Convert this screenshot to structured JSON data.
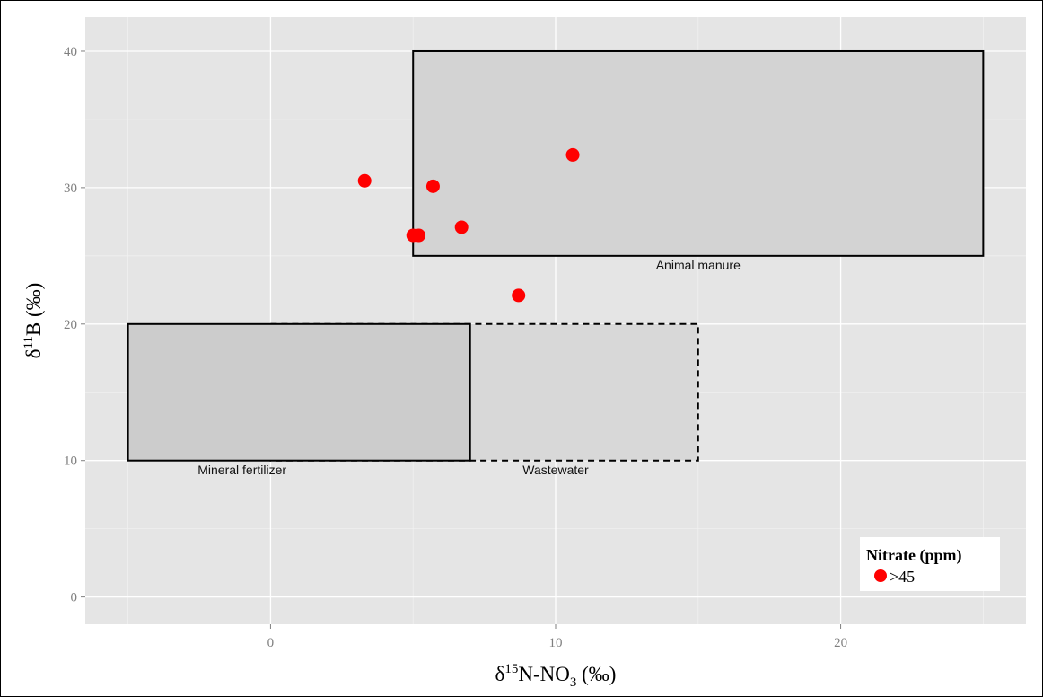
{
  "chart_data": {
    "type": "scatter",
    "xlabel": {
      "prefix": "δ",
      "sup": "15",
      "main": "N-NO",
      "sub": "3",
      "suffix": " (‰)"
    },
    "ylabel": {
      "prefix": "δ",
      "sup": "11",
      "main": "B (‰)"
    },
    "xlim": [
      -6.5,
      26.5
    ],
    "ylim": [
      -2,
      42.5
    ],
    "x_ticks": [
      0,
      10,
      20
    ],
    "y_ticks": [
      0,
      10,
      20,
      30,
      40
    ],
    "grid": true,
    "regions": [
      {
        "name": "Animal manure",
        "x": [
          5,
          25
        ],
        "y": [
          25,
          40
        ],
        "fill": "#d3d3d3",
        "line": "solid",
        "label_anchor": [
          15,
          24
        ]
      },
      {
        "name": "Wastewater",
        "x": [
          0,
          15
        ],
        "y": [
          10,
          20
        ],
        "fill": "#d8d8d8",
        "line": "dashed",
        "label_anchor": [
          10,
          9
        ]
      },
      {
        "name": "Mineral fertilizer",
        "x": [
          -5,
          7
        ],
        "y": [
          10,
          20
        ],
        "fill": "#cccccc",
        "line": "solid",
        "label_anchor": [
          -1,
          9
        ]
      }
    ],
    "series": [
      {
        "name": ">45",
        "color": "#ff0000",
        "points": [
          {
            "x": 3.3,
            "y": 30.5
          },
          {
            "x": 5.7,
            "y": 30.1
          },
          {
            "x": 10.6,
            "y": 32.4
          },
          {
            "x": 6.7,
            "y": 27.1
          },
          {
            "x": 5.0,
            "y": 26.5
          },
          {
            "x": 5.2,
            "y": 26.5
          },
          {
            "x": 8.7,
            "y": 22.1
          }
        ]
      }
    ],
    "legend": {
      "title": "Nitrate (ppm)",
      "placement": "bottom-right"
    }
  }
}
